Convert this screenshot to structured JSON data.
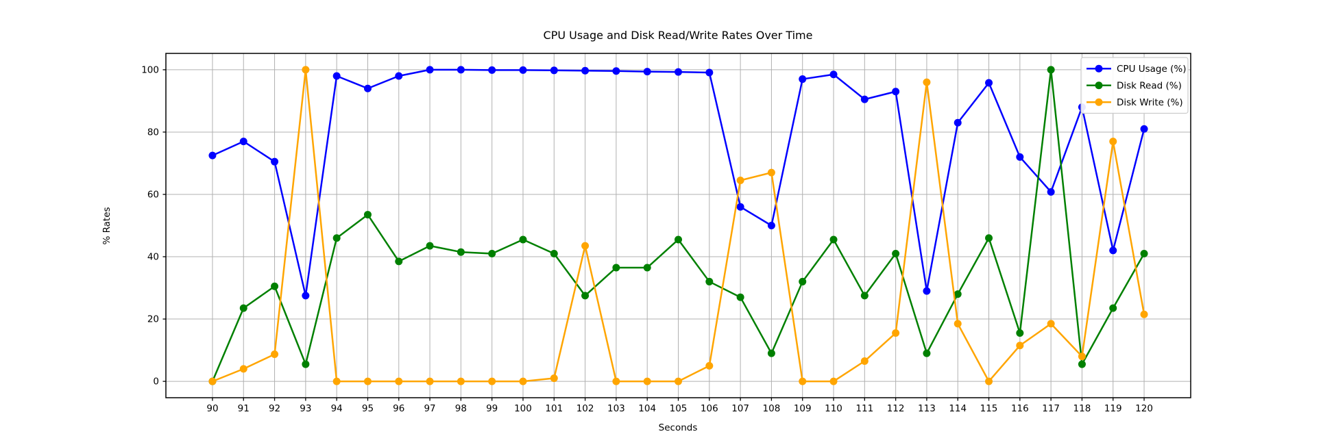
{
  "chart_data": {
    "type": "line",
    "title": "CPU Usage and Disk Read/Write Rates Over Time",
    "xlabel": "Seconds",
    "ylabel": "% Rates",
    "x": [
      90,
      91,
      92,
      93,
      94,
      95,
      96,
      97,
      98,
      99,
      100,
      101,
      102,
      103,
      104,
      105,
      106,
      107,
      108,
      109,
      110,
      111,
      112,
      113,
      114,
      115,
      116,
      117,
      118,
      119,
      120
    ],
    "series": [
      {
        "name": "CPU Usage (%)",
        "color": "#0000FF",
        "values": [
          72.5,
          77,
          70.5,
          27.5,
          98,
          94,
          98,
          100,
          100,
          99.9,
          99.9,
          99.8,
          99.7,
          99.6,
          99.4,
          99.3,
          99.1,
          56,
          50,
          97,
          98.5,
          90.5,
          93,
          29,
          83,
          95.8,
          72,
          60.8,
          88,
          42,
          81
        ]
      },
      {
        "name": "Disk Read (%)",
        "color": "#008000",
        "values": [
          0,
          23.5,
          30.5,
          5.5,
          46,
          53.5,
          38.5,
          43.5,
          41.5,
          41,
          45.5,
          41,
          27.5,
          36.5,
          36.5,
          45.5,
          32,
          27,
          9,
          32,
          45.5,
          27.5,
          41,
          9,
          28,
          46,
          15.5,
          100,
          5.5,
          23.5,
          41
        ]
      },
      {
        "name": "Disk Write (%)",
        "color": "#FFA500",
        "values": [
          0,
          4,
          8.7,
          100,
          0,
          0,
          0,
          0,
          0,
          0,
          0,
          1,
          43.5,
          0,
          0,
          0,
          5,
          64.5,
          67,
          0,
          0,
          6.5,
          15.5,
          96,
          18.5,
          0,
          11.5,
          18.5,
          8,
          77,
          21.5
        ]
      }
    ],
    "xticks": [
      90,
      91,
      92,
      93,
      94,
      95,
      96,
      97,
      98,
      99,
      100,
      101,
      102,
      103,
      104,
      105,
      106,
      107,
      108,
      109,
      110,
      111,
      112,
      113,
      114,
      115,
      116,
      117,
      118,
      119,
      120
    ],
    "yticks": [
      0,
      20,
      40,
      60,
      80,
      100
    ],
    "xlim": [
      88.5,
      121.5
    ],
    "ylim": [
      -5.25,
      105.25
    ],
    "grid": true,
    "legend_position": "upper right",
    "grid_color": "#B0B0B0",
    "spine_color": "#000000",
    "legend_border_color": "#CCCCCC"
  }
}
